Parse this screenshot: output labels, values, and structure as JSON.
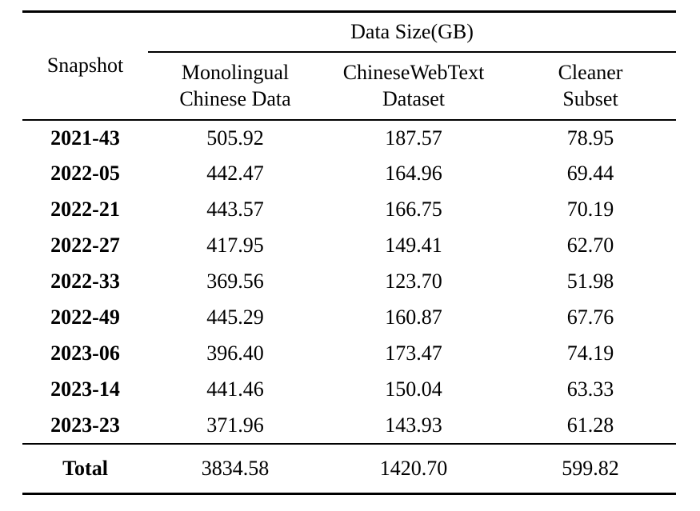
{
  "colors": {
    "text": "#000000",
    "background": "#ffffff",
    "rule": "#000000"
  },
  "table": {
    "header": {
      "snapshot_label": "Snapshot",
      "group_label": "Data Size(GB)",
      "columns": [
        {
          "line1": "Monolingual",
          "line2": "Chinese Data"
        },
        {
          "line1": "ChineseWebText",
          "line2": "Dataset"
        },
        {
          "line1": "Cleaner",
          "line2": "Subset"
        }
      ]
    },
    "rows": [
      {
        "snapshot": "2021-43",
        "values": [
          "505.92",
          "187.57",
          "78.95"
        ]
      },
      {
        "snapshot": "2022-05",
        "values": [
          "442.47",
          "164.96",
          "69.44"
        ]
      },
      {
        "snapshot": "2022-21",
        "values": [
          "443.57",
          "166.75",
          "70.19"
        ]
      },
      {
        "snapshot": "2022-27",
        "values": [
          "417.95",
          "149.41",
          "62.70"
        ]
      },
      {
        "snapshot": "2022-33",
        "values": [
          "369.56",
          "123.70",
          "51.98"
        ]
      },
      {
        "snapshot": "2022-49",
        "values": [
          "445.29",
          "160.87",
          "67.76"
        ]
      },
      {
        "snapshot": "2023-06",
        "values": [
          "396.40",
          "173.47",
          "74.19"
        ]
      },
      {
        "snapshot": "2023-14",
        "values": [
          "441.46",
          "150.04",
          "63.33"
        ]
      },
      {
        "snapshot": "2023-23",
        "values": [
          "371.96",
          "143.93",
          "61.28"
        ]
      }
    ],
    "total": {
      "label": "Total",
      "values": [
        "3834.58",
        "1420.70",
        "599.82"
      ]
    }
  }
}
